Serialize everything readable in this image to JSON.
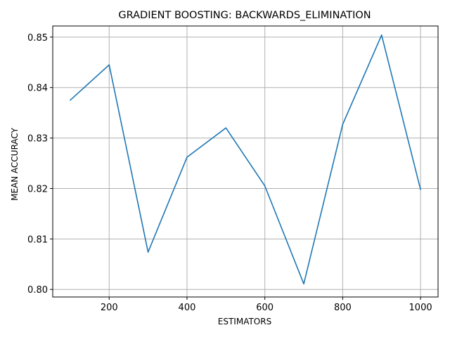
{
  "chart_data": {
    "type": "line",
    "title": "GRADIENT BOOSTING: BACKWARDS_ELIMINATION",
    "xlabel": "ESTIMATORS",
    "ylabel": "MEAN ACCURACY",
    "x": [
      100,
      200,
      300,
      400,
      500,
      600,
      700,
      800,
      900,
      1000
    ],
    "series": [
      {
        "values": [
          0.8375,
          0.8445,
          0.8074,
          0.8262,
          0.832,
          0.8205,
          0.8011,
          0.8327,
          0.8504,
          0.8198
        ]
      }
    ],
    "xlim": [
      55,
      1045
    ],
    "ylim": [
      0.7985,
      0.8522
    ],
    "xticks": [
      200,
      400,
      600,
      800,
      1000
    ],
    "xtick_labels": [
      "200",
      "400",
      "600",
      "800",
      "1000"
    ],
    "yticks": [
      0.8,
      0.81,
      0.82,
      0.83,
      0.84,
      0.85
    ],
    "ytick_labels": [
      "0.80",
      "0.81",
      "0.82",
      "0.83",
      "0.84",
      "0.85"
    ],
    "grid": true,
    "line_color": "#1f77b4",
    "grid_color": "#b0b0b0"
  }
}
